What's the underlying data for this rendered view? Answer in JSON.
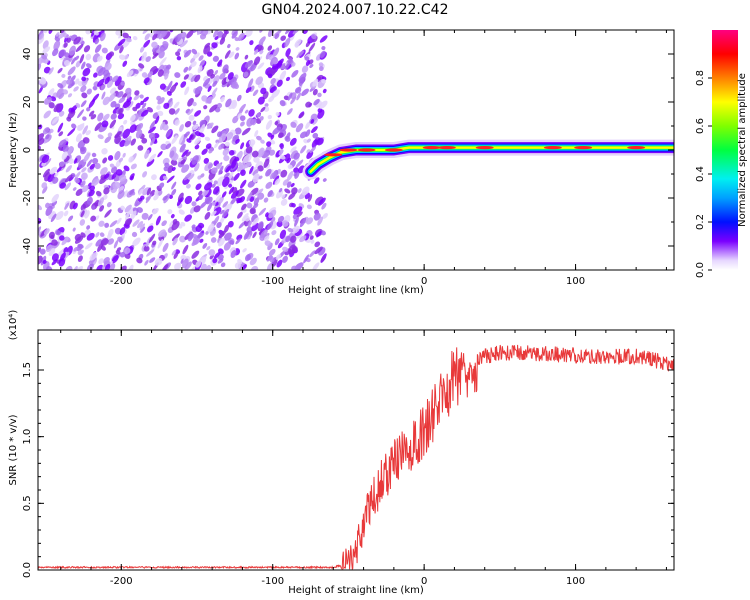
{
  "figure_title": "GN04.2024.007.10.22.C42",
  "chart_data": [
    {
      "type": "heatmap",
      "title": "GN04.2024.007.10.22.C42",
      "xlabel": "Height of straight line (km)",
      "ylabel": "Frequency (Hz)",
      "xlim": [
        -255,
        165
      ],
      "ylim": [
        -50,
        50
      ],
      "xticks": [
        -200,
        -100,
        0,
        100
      ],
      "xtick_labels": [
        "-200",
        "-100",
        "0",
        "100"
      ],
      "yticks": [
        -40,
        -20,
        0,
        20,
        40
      ],
      "ytick_labels": [
        "-40",
        "-20",
        "0",
        "20",
        "40"
      ],
      "noise_region_x": [
        -255,
        -68
      ],
      "signal_track": [
        {
          "x": -75,
          "y": -9
        },
        {
          "x": -70,
          "y": -6
        },
        {
          "x": -62,
          "y": -3
        },
        {
          "x": -55,
          "y": -1
        },
        {
          "x": -45,
          "y": 0
        },
        {
          "x": -30,
          "y": 0
        },
        {
          "x": -20,
          "y": 0
        },
        {
          "x": -10,
          "y": 1
        },
        {
          "x": 0,
          "y": 1
        },
        {
          "x": 50,
          "y": 1
        },
        {
          "x": 100,
          "y": 1
        },
        {
          "x": 165,
          "y": 1
        }
      ],
      "colorbar": {
        "label": "Normalized spectral amplitude",
        "range": [
          0,
          1
        ],
        "ticks": [
          0.0,
          0.2,
          0.4,
          0.6,
          0.8
        ],
        "tick_labels": [
          "0.0",
          "0.2",
          "0.4",
          "0.6",
          "0.8"
        ]
      },
      "grid": false
    },
    {
      "type": "line",
      "xlabel": "Height of straight line (km)",
      "ylabel": "SNR (10 * v/v)",
      "y_multiplier_label": "(x10⁴)",
      "xlim": [
        -255,
        165
      ],
      "ylim": [
        0,
        1.8
      ],
      "xticks": [
        -200,
        -100,
        0,
        100
      ],
      "xtick_labels": [
        "-200",
        "-100",
        "0",
        "100"
      ],
      "yticks": [
        0.0,
        0.5,
        1.0,
        1.5
      ],
      "ytick_labels": [
        "0.0",
        "0.5",
        "1.0",
        "1.5"
      ],
      "color": "#e8393a",
      "x": [
        -255,
        -200,
        -150,
        -100,
        -60,
        -50,
        -45,
        -40,
        -35,
        -30,
        -25,
        -20,
        -15,
        -10,
        -5,
        0,
        10,
        20,
        30,
        40,
        50,
        60,
        80,
        100,
        120,
        140,
        150,
        160,
        165
      ],
      "values": [
        0.02,
        0.02,
        0.02,
        0.02,
        0.02,
        0.05,
        0.15,
        0.35,
        0.5,
        0.62,
        0.72,
        0.8,
        0.85,
        0.9,
        0.95,
        1.05,
        1.25,
        1.45,
        1.55,
        1.6,
        1.63,
        1.63,
        1.62,
        1.61,
        1.6,
        1.6,
        1.58,
        1.55,
        1.55
      ],
      "grid": false
    }
  ],
  "colors": {
    "noise": "#8a2be2",
    "line": "#e8393a"
  }
}
